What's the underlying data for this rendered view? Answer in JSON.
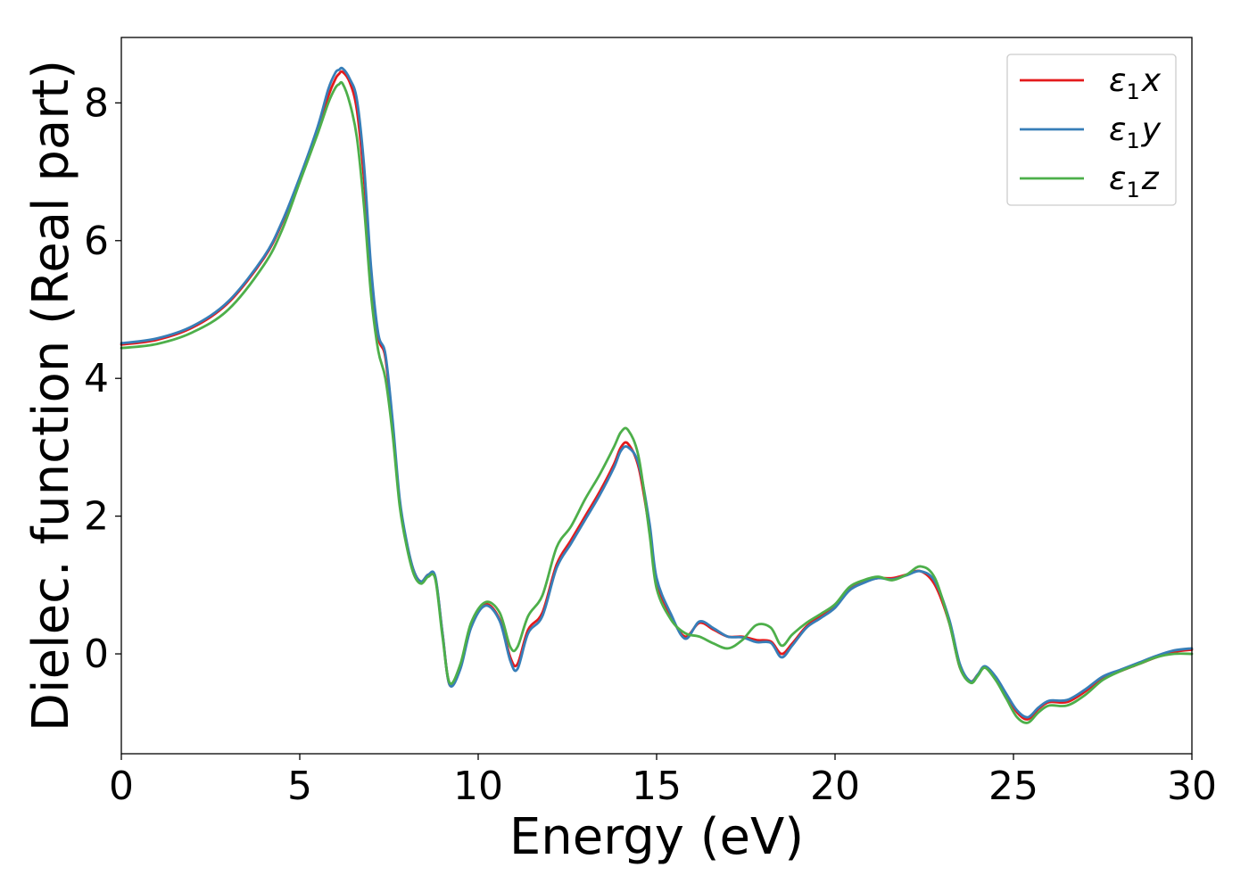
{
  "chart_data": {
    "type": "line",
    "xlabel": "Energy (eV)",
    "ylabel": "Dielec. function (Real part)",
    "xlim": [
      0,
      30
    ],
    "ylim": [
      -1.45,
      8.95
    ],
    "xticks": [
      0,
      5,
      10,
      15,
      20,
      25,
      30
    ],
    "yticks": [
      0,
      2,
      4,
      6,
      8
    ],
    "grid": false,
    "legend_position": "top-right",
    "series": [
      {
        "name": "ε1x",
        "legend_sym": "ε",
        "legend_sub": "1",
        "legend_var": "x",
        "color": "#e41a1c",
        "x": [
          0,
          1,
          2,
          3,
          4,
          4.5,
          5,
          5.5,
          5.8,
          6.0,
          6.1,
          6.2,
          6.4,
          6.6,
          6.8,
          7.0,
          7.2,
          7.4,
          7.6,
          7.8,
          8.0,
          8.2,
          8.4,
          8.6,
          8.8,
          9.0,
          9.2,
          9.5,
          9.8,
          10.2,
          10.6,
          10.9,
          11.1,
          11.4,
          11.8,
          12.2,
          12.6,
          13.0,
          13.4,
          13.8,
          14.0,
          14.2,
          14.5,
          14.8,
          15.0,
          15.4,
          15.8,
          16.2,
          16.6,
          17.0,
          17.4,
          17.8,
          18.2,
          18.5,
          18.8,
          19.2,
          19.6,
          20.0,
          20.4,
          20.8,
          21.2,
          21.6,
          22.0,
          22.4,
          22.8,
          23.2,
          23.5,
          23.8,
          24.0,
          24.2,
          24.5,
          24.8,
          25.1,
          25.4,
          25.7,
          26.0,
          26.5,
          27.0,
          27.5,
          28.0,
          28.5,
          29.0,
          29.5,
          30
        ],
        "y": [
          4.49,
          4.56,
          4.74,
          5.1,
          5.75,
          6.25,
          6.9,
          7.6,
          8.1,
          8.35,
          8.42,
          8.45,
          8.3,
          7.9,
          6.9,
          5.5,
          4.6,
          4.3,
          3.3,
          2.2,
          1.6,
          1.2,
          1.05,
          1.15,
          1.1,
          0.3,
          -0.45,
          -0.2,
          0.4,
          0.72,
          0.5,
          -0.05,
          -0.15,
          0.35,
          0.6,
          1.3,
          1.65,
          2.0,
          2.35,
          2.75,
          3.0,
          3.05,
          2.7,
          1.8,
          1.05,
          0.55,
          0.25,
          0.45,
          0.35,
          0.25,
          0.25,
          0.2,
          0.18,
          0.0,
          0.15,
          0.4,
          0.55,
          0.7,
          0.95,
          1.05,
          1.1,
          1.1,
          1.15,
          1.2,
          1.0,
          0.45,
          -0.2,
          -0.4,
          -0.3,
          -0.2,
          -0.35,
          -0.6,
          -0.85,
          -0.95,
          -0.8,
          -0.7,
          -0.7,
          -0.55,
          -0.35,
          -0.25,
          -0.15,
          -0.05,
          0.03,
          0.06
        ]
      },
      {
        "name": "ε1y",
        "legend_sym": "ε",
        "legend_sub": "1",
        "legend_var": "y",
        "color": "#377eb8",
        "x": [
          0,
          1,
          2,
          3,
          4,
          4.5,
          5,
          5.5,
          5.8,
          6.0,
          6.1,
          6.2,
          6.4,
          6.6,
          6.8,
          7.0,
          7.2,
          7.4,
          7.6,
          7.8,
          8.0,
          8.2,
          8.4,
          8.6,
          8.8,
          9.0,
          9.2,
          9.5,
          9.8,
          10.2,
          10.6,
          10.9,
          11.1,
          11.4,
          11.8,
          12.2,
          12.6,
          13.0,
          13.4,
          13.8,
          14.0,
          14.2,
          14.5,
          14.8,
          15.0,
          15.4,
          15.8,
          16.2,
          16.6,
          17.0,
          17.4,
          17.8,
          18.2,
          18.5,
          18.8,
          19.2,
          19.6,
          20.0,
          20.4,
          20.8,
          21.2,
          21.6,
          22.0,
          22.4,
          22.8,
          23.2,
          23.5,
          23.8,
          24.0,
          24.2,
          24.5,
          24.8,
          25.1,
          25.4,
          25.7,
          26.0,
          26.5,
          27.0,
          27.5,
          28.0,
          28.5,
          29.0,
          29.5,
          30
        ],
        "y": [
          4.51,
          4.58,
          4.76,
          5.12,
          5.77,
          6.27,
          6.92,
          7.65,
          8.2,
          8.44,
          8.48,
          8.5,
          8.35,
          8.05,
          7.1,
          5.6,
          4.65,
          4.35,
          3.4,
          2.25,
          1.62,
          1.2,
          1.05,
          1.15,
          1.12,
          0.3,
          -0.45,
          -0.22,
          0.38,
          0.7,
          0.48,
          -0.1,
          -0.22,
          0.3,
          0.55,
          1.25,
          1.6,
          1.95,
          2.3,
          2.7,
          2.95,
          3.0,
          2.75,
          1.9,
          1.1,
          0.58,
          0.22,
          0.47,
          0.37,
          0.25,
          0.24,
          0.17,
          0.16,
          -0.05,
          0.12,
          0.38,
          0.52,
          0.67,
          0.92,
          1.03,
          1.1,
          1.08,
          1.14,
          1.2,
          1.05,
          0.5,
          -0.15,
          -0.4,
          -0.3,
          -0.18,
          -0.33,
          -0.58,
          -0.82,
          -0.92,
          -0.78,
          -0.68,
          -0.67,
          -0.52,
          -0.33,
          -0.23,
          -0.13,
          -0.03,
          0.05,
          0.08
        ]
      },
      {
        "name": "ε1z",
        "legend_sym": "ε",
        "legend_sub": "1",
        "legend_var": "z",
        "color": "#4daf4a",
        "x": [
          0,
          1,
          2,
          3,
          4,
          4.5,
          5,
          5.5,
          5.8,
          6.0,
          6.1,
          6.2,
          6.4,
          6.6,
          6.8,
          7.0,
          7.2,
          7.4,
          7.6,
          7.8,
          8.0,
          8.2,
          8.4,
          8.6,
          8.8,
          9.0,
          9.2,
          9.5,
          9.8,
          10.2,
          10.6,
          10.9,
          11.1,
          11.4,
          11.8,
          12.2,
          12.6,
          13.0,
          13.4,
          13.8,
          14.0,
          14.2,
          14.5,
          14.8,
          15.0,
          15.4,
          15.8,
          16.2,
          16.6,
          17.0,
          17.4,
          17.8,
          18.2,
          18.5,
          18.8,
          19.2,
          19.6,
          20.0,
          20.4,
          20.8,
          21.2,
          21.6,
          22.0,
          22.4,
          22.8,
          23.2,
          23.5,
          23.8,
          24.0,
          24.2,
          24.5,
          24.8,
          25.1,
          25.4,
          25.7,
          26.0,
          26.5,
          27.0,
          27.5,
          28.0,
          28.5,
          29.0,
          29.5,
          30
        ],
        "y": [
          4.44,
          4.5,
          4.67,
          5.0,
          5.65,
          6.15,
          6.85,
          7.55,
          8.0,
          8.22,
          8.27,
          8.28,
          8.0,
          7.5,
          6.5,
          5.2,
          4.4,
          4.0,
          3.2,
          2.15,
          1.55,
          1.15,
          1.02,
          1.12,
          1.08,
          0.25,
          -0.42,
          -0.15,
          0.45,
          0.75,
          0.6,
          0.1,
          0.1,
          0.55,
          0.85,
          1.55,
          1.85,
          2.25,
          2.6,
          3.0,
          3.22,
          3.25,
          2.85,
          1.75,
          0.95,
          0.5,
          0.3,
          0.25,
          0.15,
          0.08,
          0.2,
          0.42,
          0.38,
          0.12,
          0.28,
          0.45,
          0.58,
          0.72,
          0.97,
          1.07,
          1.12,
          1.07,
          1.15,
          1.27,
          1.1,
          0.45,
          -0.2,
          -0.42,
          -0.32,
          -0.2,
          -0.38,
          -0.65,
          -0.92,
          -1.0,
          -0.85,
          -0.75,
          -0.75,
          -0.6,
          -0.38,
          -0.25,
          -0.15,
          -0.05,
          0.0,
          0.0
        ]
      }
    ]
  }
}
